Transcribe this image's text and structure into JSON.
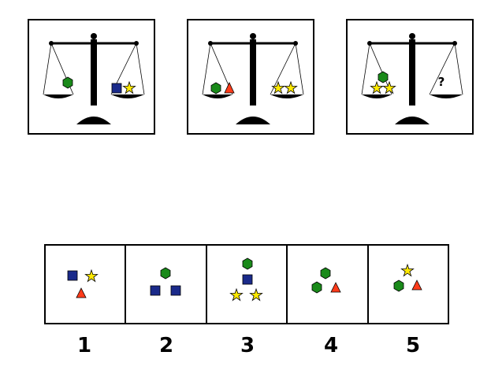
{
  "colors": {
    "hexagon": "#1a8a1a",
    "square": "#1a2a8a",
    "triangle": "#ff3b1a",
    "star": "#ffe900",
    "outline": "#000000"
  },
  "shape_icons": [
    "hexagon-icon",
    "square-icon",
    "triangle-icon",
    "star-icon"
  ],
  "balances": [
    {
      "left": [
        "hexagon"
      ],
      "right": [
        "square",
        "star"
      ]
    },
    {
      "left": [
        "hexagon",
        "triangle"
      ],
      "right": [
        "star",
        "star"
      ]
    },
    {
      "left": [
        "hexagon",
        "star",
        "star"
      ],
      "right_label": "?"
    }
  ],
  "options": [
    {
      "number": "1",
      "shapes": [
        "square",
        "star",
        "triangle"
      ]
    },
    {
      "number": "2",
      "shapes": [
        "hexagon",
        "square",
        "square"
      ]
    },
    {
      "number": "3",
      "shapes": [
        "hexagon",
        "square",
        "star",
        "star"
      ]
    },
    {
      "number": "4",
      "shapes": [
        "hexagon",
        "hexagon",
        "triangle"
      ]
    },
    {
      "number": "5",
      "shapes": [
        "star",
        "hexagon",
        "triangle"
      ]
    }
  ]
}
